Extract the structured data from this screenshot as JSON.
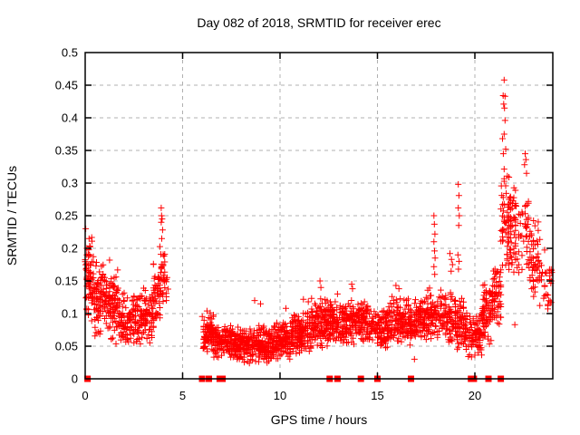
{
  "chart": {
    "title": "Day 082 of 2018, SRMTID for receiver erec",
    "xlabel": "GPS time / hours",
    "ylabel": "SRMTID / TECUs"
  },
  "chart_data": {
    "type": "scatter",
    "title": "Day 082 of 2018, SRMTID for receiver erec",
    "xlabel": "GPS time / hours",
    "ylabel": "SRMTID / TECUs",
    "xlim": [
      0,
      24
    ],
    "ylim": [
      0,
      0.5
    ],
    "xticks": [
      0,
      5,
      10,
      15,
      20
    ],
    "xtick_labels": [
      "0",
      "5",
      "10",
      "15",
      "20"
    ],
    "yticks": [
      0,
      0.05,
      0.1,
      0.15,
      0.2,
      0.25,
      0.3,
      0.35,
      0.4,
      0.45,
      0.5
    ],
    "ytick_labels": [
      "0",
      "0.05",
      "0.1",
      "0.15",
      "0.2",
      "0.25",
      "0.3",
      "0.35",
      "0.4",
      "0.45",
      "0.5"
    ],
    "grid": true,
    "legend": "none",
    "marker": "plus",
    "marker_color": "#ff0000",
    "grid_color": "#b0b0b0",
    "border_color": "#000000",
    "point_bands": [
      {
        "x0": 0.02,
        "x1": 0.45,
        "y0": 0.08,
        "y1": 0.225,
        "n": 70
      },
      {
        "x0": 0.45,
        "x1": 1.1,
        "y0": 0.06,
        "y1": 0.185,
        "n": 90
      },
      {
        "x0": 1.1,
        "x1": 1.7,
        "y0": 0.05,
        "y1": 0.17,
        "n": 90
      },
      {
        "x0": 1.7,
        "x1": 2.7,
        "y0": 0.04,
        "y1": 0.135,
        "n": 120
      },
      {
        "x0": 2.7,
        "x1": 3.5,
        "y0": 0.05,
        "y1": 0.145,
        "n": 95
      },
      {
        "x0": 3.5,
        "x1": 3.85,
        "y0": 0.07,
        "y1": 0.19,
        "n": 45
      },
      {
        "x0": 3.85,
        "x1": 4.05,
        "y0": 0.1,
        "y1": 0.23,
        "n": 22
      },
      {
        "x0": 4.0,
        "x1": 4.25,
        "y0": 0.11,
        "y1": 0.2,
        "n": 14
      },
      {
        "x0": 6.0,
        "x1": 6.6,
        "y0": 0.035,
        "y1": 0.105,
        "n": 90
      },
      {
        "x0": 6.6,
        "x1": 7.6,
        "y0": 0.03,
        "y1": 0.085,
        "n": 140
      },
      {
        "x0": 7.6,
        "x1": 8.6,
        "y0": 0.022,
        "y1": 0.08,
        "n": 150
      },
      {
        "x0": 8.6,
        "x1": 9.6,
        "y0": 0.02,
        "y1": 0.085,
        "n": 150
      },
      {
        "x0": 9.6,
        "x1": 10.6,
        "y0": 0.025,
        "y1": 0.09,
        "n": 150
      },
      {
        "x0": 10.6,
        "x1": 11.6,
        "y0": 0.035,
        "y1": 0.105,
        "n": 150
      },
      {
        "x0": 11.6,
        "x1": 12.6,
        "y0": 0.045,
        "y1": 0.125,
        "n": 140
      },
      {
        "x0": 12.6,
        "x1": 13.6,
        "y0": 0.05,
        "y1": 0.12,
        "n": 130
      },
      {
        "x0": 13.6,
        "x1": 14.6,
        "y0": 0.05,
        "y1": 0.125,
        "n": 130
      },
      {
        "x0": 14.6,
        "x1": 15.6,
        "y0": 0.045,
        "y1": 0.115,
        "n": 120
      },
      {
        "x0": 15.6,
        "x1": 16.6,
        "y0": 0.05,
        "y1": 0.13,
        "n": 120
      },
      {
        "x0": 16.6,
        "x1": 17.4,
        "y0": 0.05,
        "y1": 0.125,
        "n": 110
      },
      {
        "x0": 17.4,
        "x1": 18.3,
        "y0": 0.055,
        "y1": 0.14,
        "n": 105
      },
      {
        "x0": 18.3,
        "x1": 19.05,
        "y0": 0.05,
        "y1": 0.145,
        "n": 85
      },
      {
        "x0": 19.05,
        "x1": 19.45,
        "y0": 0.04,
        "y1": 0.13,
        "n": 55
      },
      {
        "x0": 19.45,
        "x1": 20.35,
        "y0": 0.03,
        "y1": 0.105,
        "n": 110
      },
      {
        "x0": 20.35,
        "x1": 20.9,
        "y0": 0.05,
        "y1": 0.15,
        "n": 80
      },
      {
        "x0": 20.9,
        "x1": 21.35,
        "y0": 0.07,
        "y1": 0.185,
        "n": 65
      },
      {
        "x0": 21.35,
        "x1": 21.75,
        "y0": 0.13,
        "y1": 0.33,
        "n": 55
      },
      {
        "x0": 21.75,
        "x1": 22.45,
        "y0": 0.15,
        "y1": 0.31,
        "n": 70
      },
      {
        "x0": 22.5,
        "x1": 22.75,
        "y0": 0.17,
        "y1": 0.3,
        "n": 22
      },
      {
        "x0": 22.75,
        "x1": 23.3,
        "y0": 0.12,
        "y1": 0.26,
        "n": 55
      },
      {
        "x0": 23.3,
        "x1": 23.95,
        "y0": 0.1,
        "y1": 0.2,
        "n": 30
      }
    ],
    "outlier_points": [
      [
        0.03,
        0.23
      ],
      [
        0.2,
        0.215
      ],
      [
        1.25,
        0.182
      ],
      [
        3.9,
        0.262
      ],
      [
        3.92,
        0.25
      ],
      [
        3.95,
        0.245
      ],
      [
        3.9,
        0.24
      ],
      [
        3.97,
        0.228
      ],
      [
        3.93,
        0.215
      ],
      [
        8.7,
        0.12
      ],
      [
        9.0,
        0.115
      ],
      [
        10.3,
        0.108
      ],
      [
        11.2,
        0.122
      ],
      [
        11.45,
        0.118
      ],
      [
        12.05,
        0.15
      ],
      [
        12.1,
        0.14
      ],
      [
        12.95,
        0.13
      ],
      [
        13.68,
        0.145
      ],
      [
        13.72,
        0.138
      ],
      [
        15.95,
        0.143
      ],
      [
        16.1,
        0.138
      ],
      [
        16.9,
        0.03
      ],
      [
        17.9,
        0.25
      ],
      [
        17.92,
        0.237
      ],
      [
        17.95,
        0.222
      ],
      [
        17.9,
        0.21
      ],
      [
        17.93,
        0.196
      ],
      [
        17.96,
        0.185
      ],
      [
        17.9,
        0.172
      ],
      [
        17.94,
        0.16
      ],
      [
        18.72,
        0.192
      ],
      [
        18.8,
        0.183
      ],
      [
        18.85,
        0.175
      ],
      [
        18.78,
        0.165
      ],
      [
        19.15,
        0.298
      ],
      [
        19.18,
        0.281
      ],
      [
        19.15,
        0.262
      ],
      [
        19.2,
        0.25
      ],
      [
        19.17,
        0.235
      ],
      [
        19.13,
        0.19
      ],
      [
        19.19,
        0.18
      ],
      [
        19.16,
        0.168
      ],
      [
        21.5,
        0.458
      ],
      [
        21.45,
        0.434
      ],
      [
        21.55,
        0.433
      ],
      [
        21.48,
        0.421
      ],
      [
        21.52,
        0.415
      ],
      [
        21.55,
        0.396
      ],
      [
        21.5,
        0.375
      ],
      [
        21.42,
        0.368
      ],
      [
        21.58,
        0.352
      ],
      [
        21.46,
        0.345
      ],
      [
        22.58,
        0.345
      ],
      [
        22.62,
        0.336
      ],
      [
        22.55,
        0.328
      ],
      [
        22.65,
        0.315
      ],
      [
        22.05,
        0.083
      ],
      [
        23.85,
        0.158
      ],
      [
        23.92,
        0.15
      ],
      [
        23.95,
        0.163
      ]
    ],
    "zero_markers_x": [
      0.12,
      6.0,
      6.35,
      6.9,
      7.05,
      12.55,
      12.95,
      14.15,
      15.0,
      16.72,
      19.8,
      19.95,
      20.7,
      21.33
    ]
  }
}
